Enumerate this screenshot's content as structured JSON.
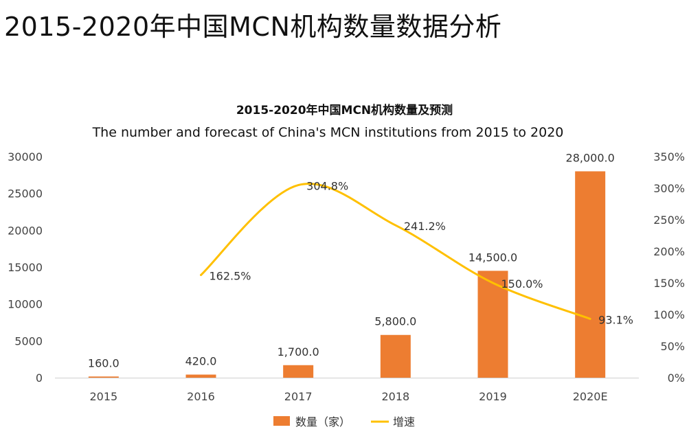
{
  "page": {
    "title": "2015-2020年中国MCN机构数量数据分析"
  },
  "chart_data": {
    "type": "bar",
    "title": "2015-2020年中国MCN机构数量及预测",
    "subtitle": "The number and forecast of China's MCN institutions from 2015 to 2020",
    "categories": [
      "2015",
      "2016",
      "2017",
      "2018",
      "2019",
      "2020E"
    ],
    "series": [
      {
        "name": "数量（家）",
        "type": "bar",
        "axis": "left",
        "color": "#ED7D31",
        "values": [
          160,
          420,
          1700,
          5800,
          14500,
          28000
        ],
        "labels": [
          "160.0",
          "420.0",
          "1,700.0",
          "5,800.0",
          "14,500.0",
          "28,000.0"
        ]
      },
      {
        "name": "增速",
        "type": "line",
        "axis": "right",
        "color": "#FFC000",
        "smooth": true,
        "values": [
          null,
          162.5,
          304.8,
          241.2,
          150.0,
          93.1
        ],
        "labels": [
          null,
          "162.5%",
          "304.8%",
          "241.2%",
          "150.0%",
          "93.1%"
        ]
      }
    ],
    "y_left": {
      "ylim": [
        0,
        30000
      ],
      "ticks": [
        "0",
        "5000",
        "10000",
        "15000",
        "20000",
        "25000",
        "30000"
      ]
    },
    "y_right": {
      "ylim": [
        0,
        350
      ],
      "unit": "%",
      "ticks": [
        "0%",
        "50%",
        "100%",
        "150%",
        "200%",
        "250%",
        "300%",
        "350%"
      ]
    },
    "grid": false,
    "legend": "bottom-center"
  }
}
